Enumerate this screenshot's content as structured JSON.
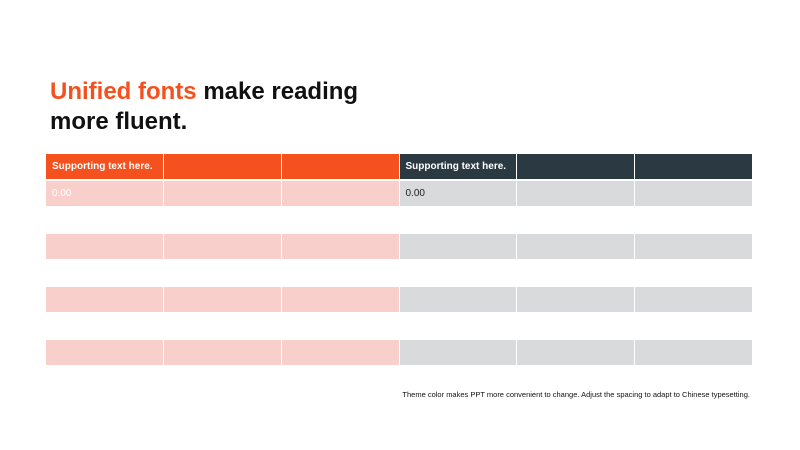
{
  "title": {
    "accent": "Unified fonts",
    "line1_rest": " make reading",
    "line2": "more fluent."
  },
  "table": {
    "header": [
      "Supporting text here.",
      "",
      "",
      "Supporting text here.",
      "",
      ""
    ],
    "rows": [
      [
        "0.00",
        "",
        "",
        "0.00",
        "",
        ""
      ],
      [
        "",
        "",
        "",
        "",
        "",
        ""
      ],
      [
        "",
        "",
        "",
        "",
        "",
        ""
      ],
      [
        "",
        "",
        "",
        "",
        "",
        ""
      ]
    ]
  },
  "footnote": "Theme color makes PPT more convenient to change. Adjust the spacing to adapt to Chinese typesetting.",
  "colors": {
    "accent": "#f4511e",
    "dark": "#2b3a42",
    "light_accent": "#f9cfcc",
    "light_gray": "#d9dadb"
  }
}
